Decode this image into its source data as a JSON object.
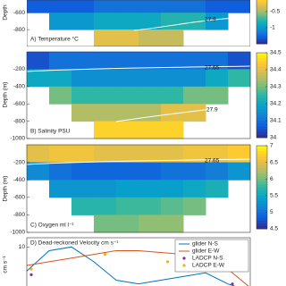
{
  "chart_data": [
    {
      "type": "heatmap",
      "title": "A) Temperature °C",
      "ylabel": "Depth",
      "ylim": [
        -1000,
        -450
      ],
      "yticks": [
        -600,
        -800
      ],
      "clim": [
        -1.5,
        0
      ],
      "cticks": [
        -0.5,
        -1
      ],
      "contour_labels": [
        "27.9"
      ],
      "depth": [
        -500,
        -700,
        -900
      ],
      "z": [
        [
          -1.3,
          -1.3,
          -1.3,
          -1.2,
          -1.2,
          -1.2,
          -1.2,
          -1.2,
          -1.3,
          -1.3
        ],
        [
          null,
          -1.0,
          -1.0,
          -0.9,
          -0.9,
          -0.9,
          -0.8,
          -0.8,
          -1.0,
          null
        ],
        [
          null,
          null,
          null,
          -0.3,
          -0.3,
          -0.4,
          -0.4,
          null,
          null,
          null
        ]
      ]
    },
    {
      "type": "heatmap",
      "title": "B) Salinity PSU",
      "ylabel": "Depth (m)",
      "ylim": [
        -1000,
        0
      ],
      "yticks": [
        -200,
        -400,
        -600,
        -800,
        -1000
      ],
      "clim": [
        34,
        34.5
      ],
      "cticks": [
        34.5,
        34.4,
        34.3,
        34.2,
        34.1,
        34
      ],
      "contour_labels": [
        "27.65",
        "27.9"
      ],
      "depth": [
        -100,
        -300,
        -500,
        -700,
        -900
      ],
      "z": [
        [
          34.05,
          34.1,
          34.1,
          34.1,
          34.1,
          34.1,
          34.1,
          34.1,
          34.1,
          34.05
        ],
        [
          34.2,
          34.2,
          34.15,
          34.15,
          34.15,
          34.15,
          34.15,
          34.15,
          34.2,
          34.25
        ],
        [
          null,
          34.3,
          34.25,
          34.25,
          34.25,
          34.25,
          34.25,
          34.3,
          34.3,
          null
        ],
        [
          null,
          null,
          34.35,
          34.35,
          34.35,
          34.35,
          34.4,
          34.4,
          null,
          null
        ],
        [
          null,
          null,
          null,
          34.45,
          34.45,
          34.45,
          34.45,
          null,
          null,
          null
        ]
      ]
    },
    {
      "type": "heatmap",
      "title": "C) Oxygen ml l⁻¹",
      "ylabel": "Depth (m)",
      "ylim": [
        -1000,
        0
      ],
      "yticks": [
        -200,
        -400,
        -600,
        -800,
        -1000
      ],
      "clim": [
        4.5,
        7
      ],
      "cticks": [
        7,
        6.5,
        6,
        5.5,
        5,
        4.5
      ],
      "contour_labels": [
        "27.65"
      ],
      "depth": [
        -100,
        -300,
        -500,
        -700,
        -900
      ],
      "z": [
        [
          6.5,
          6.6,
          6.6,
          6.5,
          6.5,
          6.5,
          6.5,
          6.6,
          6.6,
          6.7
        ],
        [
          5.2,
          5.0,
          4.9,
          4.9,
          4.9,
          4.9,
          5.0,
          5.0,
          5.1,
          5.3
        ],
        [
          null,
          5.3,
          5.3,
          5.3,
          5.4,
          5.4,
          5.4,
          5.5,
          5.6,
          null
        ],
        [
          null,
          null,
          5.7,
          5.7,
          5.8,
          5.8,
          5.9,
          6.0,
          null,
          null
        ],
        [
          null,
          null,
          null,
          6.0,
          6.0,
          6.1,
          6.1,
          null,
          null,
          null
        ]
      ]
    },
    {
      "type": "line",
      "title": "D) Dead-reckoned Velocity cm s⁻¹",
      "ylabel": "cm s⁻¹",
      "xlim": [
        0,
        10
      ],
      "ylim": [
        -15,
        15
      ],
      "yticks": [
        10
      ],
      "series": [
        {
          "name": "glider N-S",
          "color": "#0072bd",
          "x": [
            0,
            1,
            2,
            3,
            4,
            5,
            6,
            7,
            8,
            9,
            10
          ],
          "values": [
            -3,
            8,
            10,
            2,
            -8,
            -10,
            -8,
            -6,
            -4,
            -10,
            -14
          ]
        },
        {
          "name": "glider E-W",
          "color": "#d95319",
          "x": [
            0,
            1,
            2,
            3,
            4,
            5,
            6,
            7,
            8,
            9,
            10
          ],
          "values": [
            0,
            2,
            4,
            6,
            8,
            8,
            7,
            6,
            8,
            -2,
            -12
          ]
        },
        {
          "name": "LADCP N-S",
          "color": "#7e2f8e",
          "marker": "star",
          "x": [
            0.2,
            9.2
          ],
          "values": [
            -5,
            -10
          ]
        },
        {
          "name": "LADCP E-W",
          "color": "#edb120",
          "marker": "dot",
          "x": [
            0.2,
            3.5,
            6.3,
            9.4
          ],
          "values": [
            -2,
            6,
            2,
            8
          ]
        }
      ]
    }
  ]
}
